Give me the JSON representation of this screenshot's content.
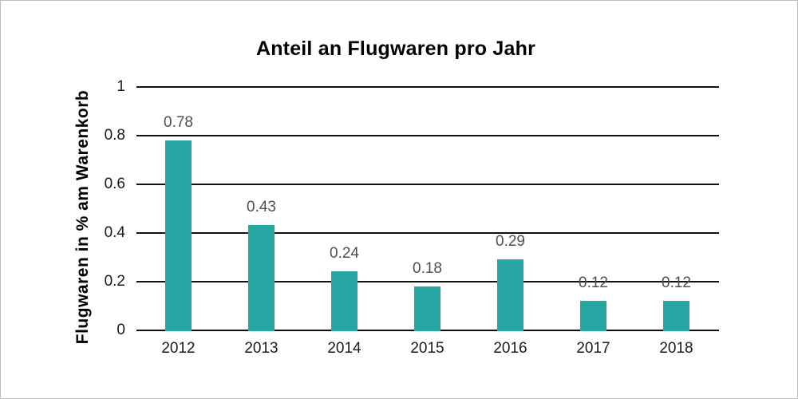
{
  "chart_data": {
    "type": "bar",
    "title": "Anteil an Flugwaren pro Jahr",
    "xlabel": "",
    "ylabel": "Flugwaren in % am Warenkorb",
    "categories": [
      "2012",
      "2013",
      "2014",
      "2015",
      "2016",
      "2017",
      "2018"
    ],
    "values": [
      0.78,
      0.43,
      0.24,
      0.18,
      0.29,
      0.12,
      0.12
    ],
    "value_labels": [
      "0.78",
      "0.43",
      "0.24",
      "0.18",
      "0.29",
      "0.12",
      "0.12"
    ],
    "ylim": [
      0,
      1
    ],
    "yticks": [
      0,
      0.2,
      0.4,
      0.6,
      0.8,
      1
    ],
    "ytick_labels": [
      "0",
      "0.2",
      "0.4",
      "0.6",
      "0.8",
      "1"
    ],
    "grid": true,
    "legend": false,
    "colors": {
      "bar": "#27a6a4",
      "gridline": "#111111",
      "axis_text": "#1a1a1a",
      "value_label": "#4f4f4f",
      "title": "#000000",
      "canvas_border": "#bdbdbd",
      "background": "#ffffff"
    }
  }
}
